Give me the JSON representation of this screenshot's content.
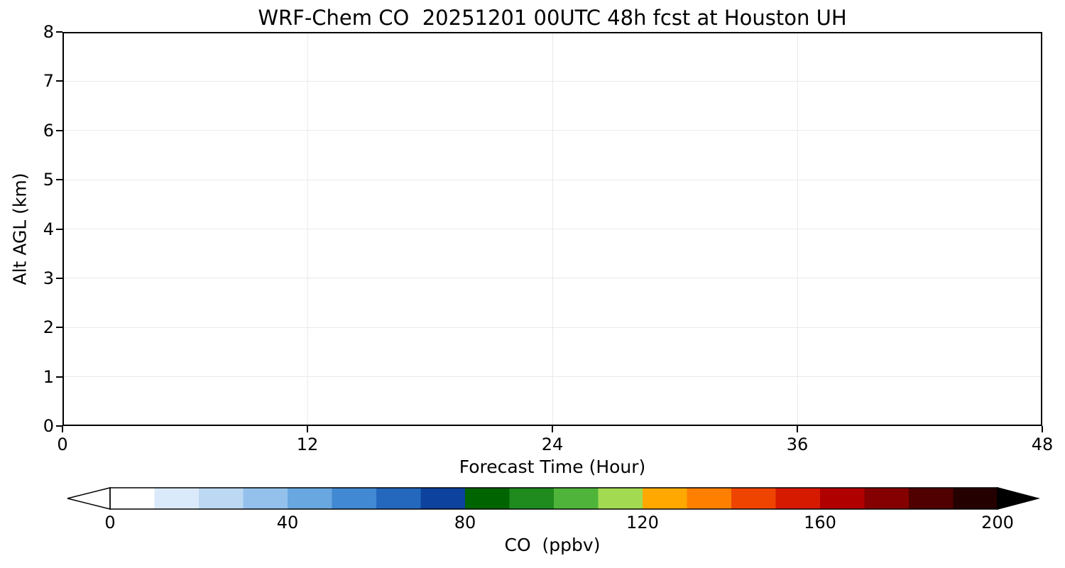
{
  "figure": {
    "background": "#ffffff"
  },
  "chart_data": {
    "type": "heatmap",
    "title": "WRF-Chem CO  20251201 00UTC 48h fcst at Houston UH",
    "xlabel": "Forecast Time (Hour)",
    "ylabel": "Alt AGL (km)",
    "xlim": [
      0,
      48
    ],
    "ylim": [
      0,
      8
    ],
    "x_ticks": [
      0,
      12,
      24,
      36,
      48
    ],
    "y_ticks": [
      0,
      1,
      2,
      3,
      4,
      5,
      6,
      7,
      8
    ],
    "grid": true,
    "grid_color": "#e9e9e9",
    "values": [],
    "note": "Time-height cross-section panel is blank/white; no CO contour field is visible in the screenshot",
    "colorbar": {
      "label": "CO  (ppbv)",
      "ticks": [
        0,
        40,
        80,
        120,
        160,
        200
      ],
      "vmin": 0,
      "vmax": 200,
      "extend": "both",
      "under_color": "#ffffff",
      "over_color": "#000000",
      "segment_colors": [
        "#ffffff",
        "#dbeafa",
        "#bcd8f2",
        "#94c1ec",
        "#68a7e0",
        "#4189d2",
        "#2468bd",
        "#0d429e",
        "#006400",
        "#1f8b1f",
        "#4fb53a",
        "#a2db52",
        "#ffa800",
        "#ff7f00",
        "#ee4400",
        "#d61a00",
        "#b00000",
        "#850000",
        "#500000",
        "#250000"
      ]
    }
  }
}
